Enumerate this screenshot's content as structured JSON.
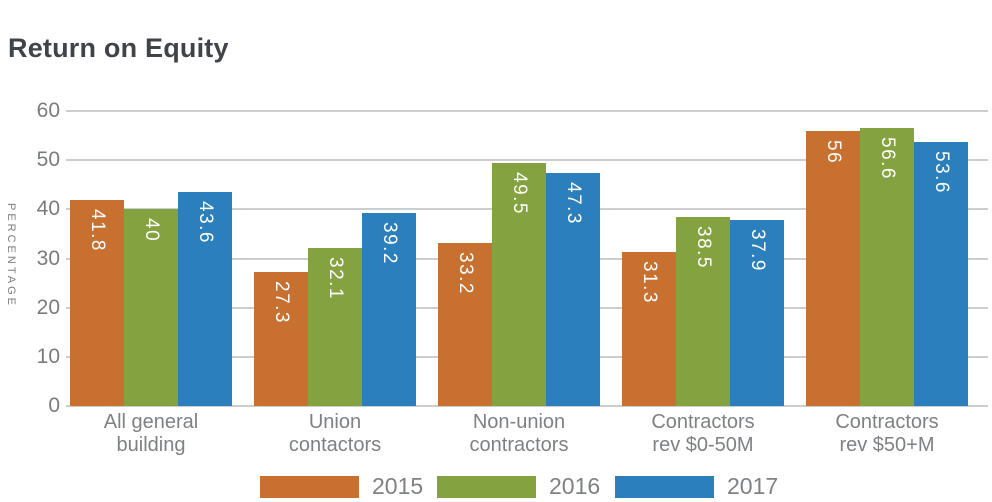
{
  "title": "Return on Equity",
  "chart_data": {
    "type": "bar",
    "title": "Return on Equity",
    "ylabel": "PERCENTAGE",
    "xlabel": "",
    "ylim": [
      0,
      60
    ],
    "yticks": [
      0,
      10,
      20,
      30,
      40,
      50,
      60
    ],
    "grid": true,
    "legend_position": "bottom",
    "categories": [
      {
        "lines": [
          "All general",
          "building"
        ]
      },
      {
        "lines": [
          "Union",
          "contactors"
        ]
      },
      {
        "lines": [
          "Non-union",
          "contractors"
        ]
      },
      {
        "lines": [
          "Contractors",
          "rev $0-50M"
        ]
      },
      {
        "lines": [
          "Contractors",
          "rev $50+M"
        ]
      }
    ],
    "series": [
      {
        "name": "2015",
        "color": "#C8702F",
        "values": [
          41.8,
          27.3,
          33.2,
          31.3,
          56
        ]
      },
      {
        "name": "2016",
        "color": "#84A23F",
        "values": [
          40,
          32.1,
          49.5,
          38.5,
          56.6
        ]
      },
      {
        "name": "2017",
        "color": "#2A7FBC",
        "values": [
          43.6,
          39.2,
          47.3,
          37.9,
          53.6
        ]
      }
    ]
  },
  "colors": {
    "background": "#FFFFFF",
    "title_text": "#404448",
    "axis_text": "#797C7E",
    "category_text": "#7E8183",
    "legend_text": "#7E8183",
    "gridline": "#CBCDCF",
    "bar_label_text": "#FFFFFF"
  }
}
